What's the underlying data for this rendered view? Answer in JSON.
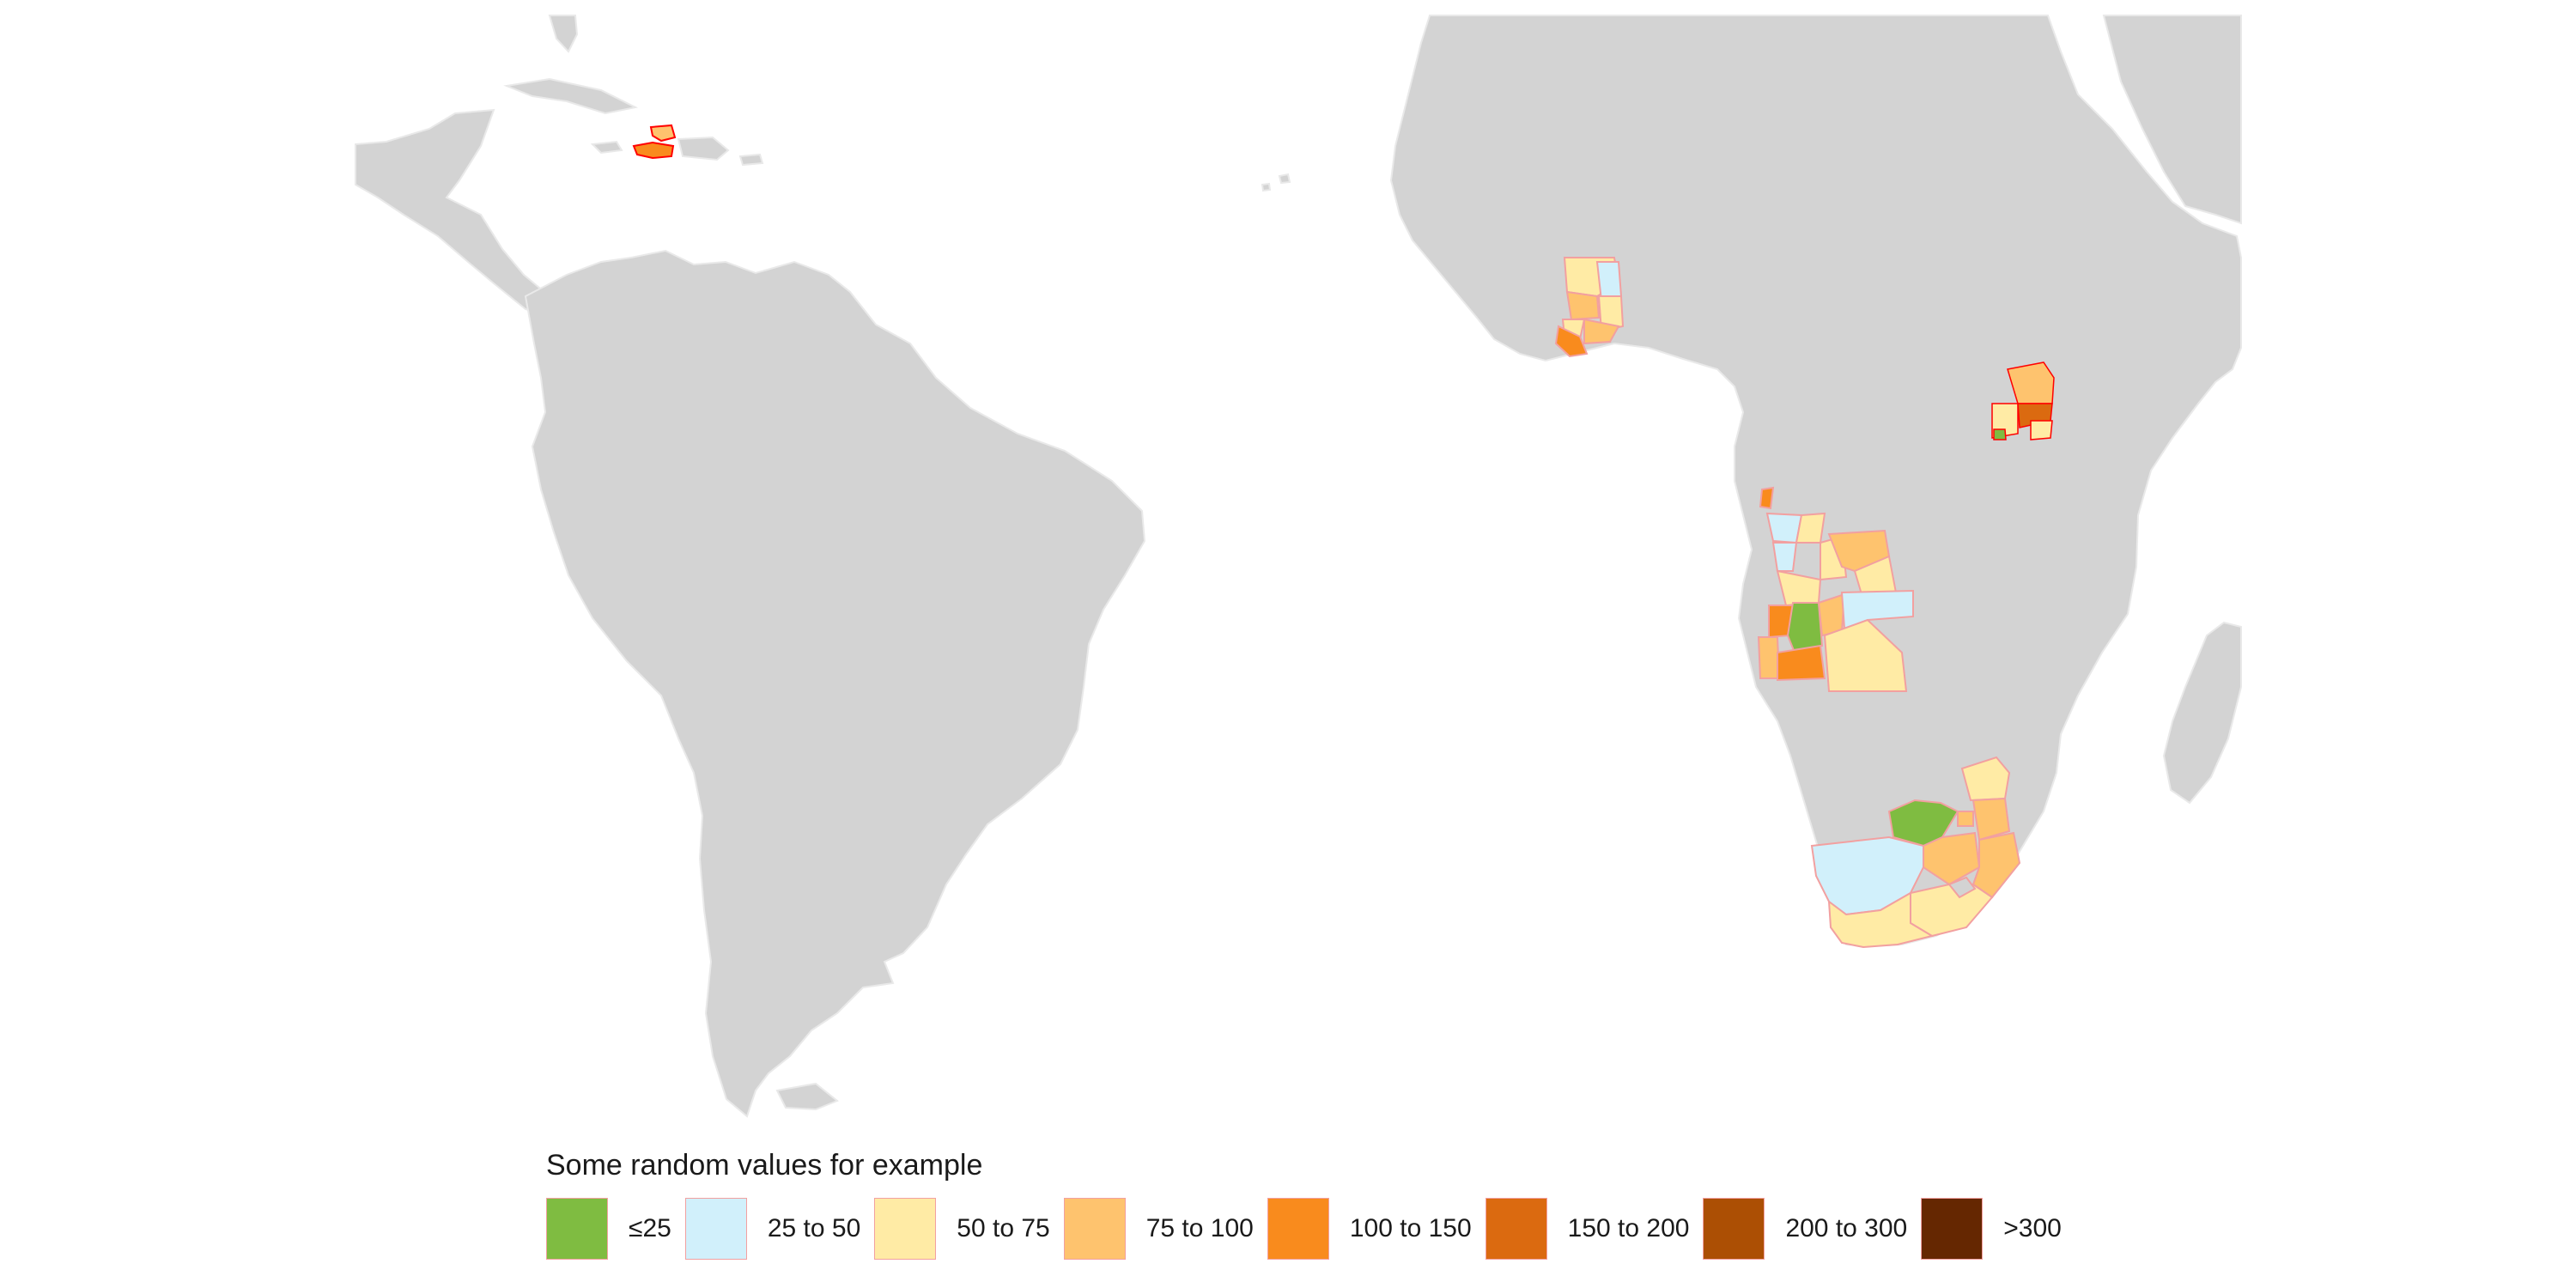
{
  "legend": {
    "title": "Some random values for example",
    "items": [
      {
        "label": "≤25",
        "color": "#7fbc41"
      },
      {
        "label": "25 to 50",
        "color": "#d1f0fb"
      },
      {
        "label": "50 to 75",
        "color": "#ffeba5"
      },
      {
        "label": "75 to 100",
        "color": "#fec36e"
      },
      {
        "label": "100 to 150",
        "color": "#f98b1d"
      },
      {
        "label": "150 to 200",
        "color": "#db6a10"
      },
      {
        "label": "200 to 300",
        "color": "#ac4f04"
      },
      {
        "label": ">300",
        "color": "#652701"
      }
    ]
  },
  "map": {
    "base_land_color": "#d3d3d3",
    "background_color": "#ffffff",
    "region_border_color": "#ff0000",
    "highlighted_countries": [
      "Haiti",
      "Ghana",
      "Uganda",
      "Angola",
      "South Africa"
    ]
  }
}
